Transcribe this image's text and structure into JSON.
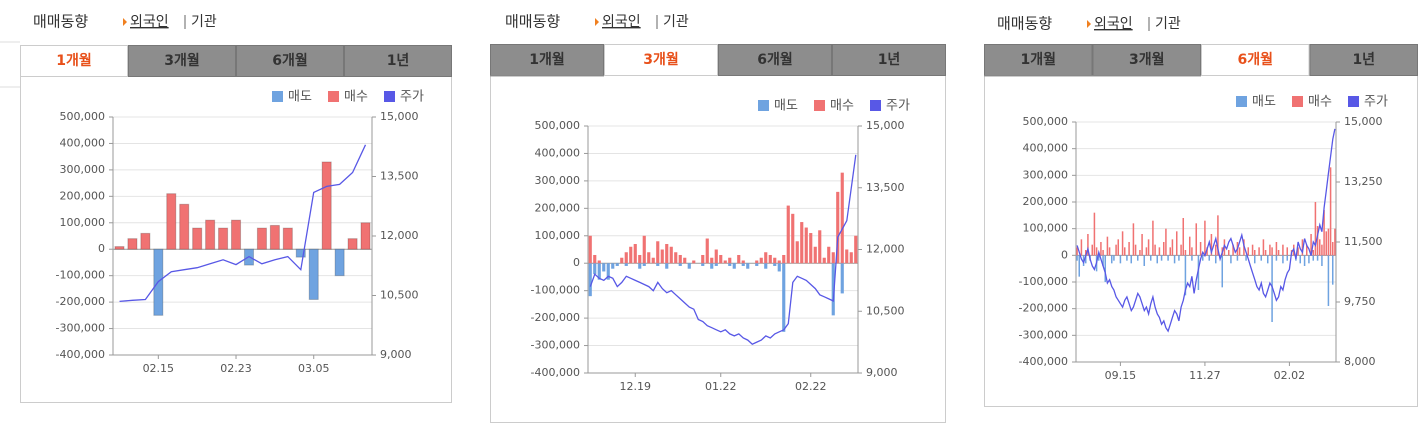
{
  "panels": [
    {
      "title": "매매동향",
      "links": [
        "외국인",
        "기관"
      ],
      "tabs": [
        "1개월",
        "3개월",
        "6개월",
        "1년"
      ],
      "active_tab": 0
    },
    {
      "title": "매매동향",
      "links": [
        "외국인",
        "기관"
      ],
      "tabs": [
        "1개월",
        "3개월",
        "6개월",
        "1년"
      ],
      "active_tab": 1
    },
    {
      "title": "매매동향",
      "links": [
        "외국인",
        "기관"
      ],
      "tabs": [
        "1개월",
        "3개월",
        "6개월",
        "1년"
      ],
      "active_tab": 2
    }
  ],
  "chart_data": [
    {
      "type": "bar",
      "grid": true,
      "categories": [
        null,
        null,
        null,
        "02.15",
        null,
        null,
        null,
        null,
        null,
        "02.23",
        null,
        null,
        null,
        null,
        null,
        "03.05",
        null,
        null,
        null,
        null
      ],
      "ylim": [
        -400000,
        500000
      ],
      "yticks": [
        {
          "value": 500000,
          "label": "500,000"
        },
        {
          "value": 400000,
          "label": "400,000"
        },
        {
          "value": 300000,
          "label": "300,000"
        },
        {
          "value": 200000,
          "label": "200,000"
        },
        {
          "value": 100000,
          "label": "100,000"
        },
        0,
        {
          "value": -100000,
          "label": "-100,000"
        },
        {
          "value": -200000,
          "label": "-200,000"
        },
        {
          "value": -300000,
          "label": "-300,000"
        },
        {
          "value": -400000,
          "label": "-400,000"
        }
      ],
      "y2lim": [
        9000,
        15000
      ],
      "y2ticks": [
        {
          "value": 15000,
          "label": "15,000"
        },
        {
          "value": 13500,
          "label": "13,500"
        },
        {
          "value": 12000,
          "label": "12,000"
        },
        {
          "value": 10500,
          "label": "10,500"
        },
        {
          "value": 9000,
          "label": "9,000"
        }
      ],
      "series": [
        {
          "name": "매도",
          "color": "#6fa3e0",
          "values": [
            null,
            null,
            null,
            -250000,
            null,
            null,
            null,
            null,
            null,
            null,
            -60000,
            null,
            null,
            null,
            -30000,
            -190000,
            null,
            -100000,
            null,
            null
          ]
        },
        {
          "name": "매수",
          "color": "#f07272",
          "values": [
            10000,
            40000,
            60000,
            null,
            210000,
            170000,
            80000,
            110000,
            80000,
            110000,
            null,
            80000,
            90000,
            80000,
            null,
            null,
            330000,
            null,
            40000,
            100000
          ]
        },
        {
          "name": "주가",
          "color": "#5858e6",
          "axis": "y2",
          "values": [
            10350,
            10380,
            10400,
            10850,
            11100,
            11150,
            11200,
            11300,
            11400,
            11280,
            11480,
            11300,
            11400,
            11480,
            11150,
            13100,
            13250,
            13300,
            13600,
            14300
          ]
        }
      ]
    },
    {
      "type": "bar",
      "grid": true,
      "categories": [
        null,
        null,
        null,
        null,
        null,
        null,
        null,
        null,
        null,
        null,
        "12.19",
        null,
        null,
        null,
        null,
        null,
        null,
        null,
        null,
        null,
        null,
        null,
        null,
        null,
        null,
        null,
        null,
        null,
        null,
        "01.22",
        null,
        null,
        null,
        null,
        null,
        null,
        null,
        null,
        null,
        null,
        null,
        null,
        null,
        null,
        null,
        null,
        null,
        null,
        null,
        "02.22",
        null,
        null,
        null,
        null,
        null,
        null,
        null,
        null,
        null,
        null
      ],
      "ylim": [
        -400000,
        500000
      ],
      "yticks": [
        {
          "value": 500000,
          "label": "500,000"
        },
        {
          "value": 400000,
          "label": "400,000"
        },
        {
          "value": 300000,
          "label": "300,000"
        },
        {
          "value": 200000,
          "label": "200,000"
        },
        {
          "value": 100000,
          "label": "100,000"
        },
        0,
        {
          "value": -100000,
          "label": "-100,000"
        },
        {
          "value": -200000,
          "label": "-200,000"
        },
        {
          "value": -300000,
          "label": "-300,000"
        },
        {
          "value": -400000,
          "label": "-400,000"
        }
      ],
      "y2lim": [
        9000,
        15000
      ],
      "y2ticks": [
        {
          "value": 15000,
          "label": "15,000"
        },
        {
          "value": 13500,
          "label": "13,500"
        },
        {
          "value": 12000,
          "label": "12,000"
        },
        {
          "value": 10500,
          "label": "10,500"
        },
        {
          "value": 9000,
          "label": "9,000"
        }
      ],
      "series": [
        {
          "name": "매도",
          "color": "#6fa3e0",
          "values": [
            -120000,
            -40000,
            -60000,
            -30000,
            -60000,
            -20000,
            -10000,
            null,
            -10000,
            null,
            null,
            -20000,
            -10000,
            null,
            null,
            -10000,
            null,
            -20000,
            null,
            null,
            -10000,
            null,
            -20000,
            null,
            null,
            -10000,
            null,
            -20000,
            -10000,
            null,
            null,
            -10000,
            -20000,
            null,
            -10000,
            -20000,
            null,
            -10000,
            null,
            -20000,
            null,
            -10000,
            -30000,
            -250000,
            null,
            null,
            null,
            null,
            null,
            null,
            null,
            null,
            null,
            null,
            -190000,
            null,
            -110000,
            null,
            null,
            null
          ]
        },
        {
          "name": "매수",
          "color": "#f07272",
          "values": [
            100000,
            30000,
            10000,
            null,
            null,
            null,
            null,
            20000,
            40000,
            60000,
            70000,
            30000,
            100000,
            40000,
            20000,
            80000,
            50000,
            70000,
            60000,
            40000,
            30000,
            20000,
            null,
            10000,
            null,
            30000,
            90000,
            20000,
            50000,
            30000,
            10000,
            20000,
            null,
            30000,
            10000,
            null,
            null,
            10000,
            20000,
            40000,
            30000,
            20000,
            10000,
            30000,
            210000,
            180000,
            80000,
            150000,
            130000,
            110000,
            60000,
            120000,
            20000,
            60000,
            40000,
            260000,
            330000,
            50000,
            40000,
            100000
          ]
        },
        {
          "name": "주가",
          "color": "#5858e6",
          "axis": "y2",
          "values": [
            11100,
            11400,
            11300,
            11250,
            11350,
            11300,
            11100,
            11200,
            11350,
            11300,
            11250,
            11200,
            11150,
            11100,
            11000,
            11200,
            11050,
            10950,
            11000,
            10900,
            10800,
            10700,
            10600,
            10550,
            10300,
            10250,
            10150,
            10100,
            10050,
            10000,
            10050,
            9950,
            9900,
            9950,
            9850,
            9800,
            9700,
            9750,
            9800,
            9900,
            9850,
            9950,
            10000,
            10050,
            10200,
            11200,
            11350,
            11300,
            11250,
            11150,
            11050,
            10900,
            10850,
            10800,
            10750,
            12300,
            12500,
            12700,
            13500,
            14300
          ]
        }
      ]
    },
    {
      "type": "bar",
      "grid": true,
      "categories": [
        null,
        null,
        null,
        null,
        null,
        null,
        null,
        null,
        null,
        null,
        null,
        null,
        null,
        null,
        null,
        null,
        null,
        null,
        null,
        null,
        "09.15",
        null,
        null,
        null,
        null,
        null,
        null,
        null,
        null,
        null,
        null,
        null,
        null,
        null,
        null,
        null,
        null,
        null,
        null,
        null,
        null,
        null,
        null,
        null,
        null,
        null,
        null,
        null,
        null,
        null,
        null,
        null,
        null,
        null,
        null,
        null,
        null,
        null,
        null,
        "11.27",
        null,
        null,
        null,
        null,
        null,
        null,
        null,
        null,
        null,
        null,
        null,
        null,
        null,
        null,
        null,
        null,
        null,
        null,
        null,
        null,
        null,
        null,
        null,
        null,
        null,
        null,
        null,
        null,
        null,
        null,
        null,
        null,
        null,
        null,
        null,
        null,
        null,
        null,
        "02.02",
        null,
        null,
        null,
        null,
        null,
        null,
        null,
        null,
        null,
        null,
        null,
        null,
        null,
        null,
        null,
        null,
        null,
        null,
        null,
        null,
        null
      ],
      "ylim": [
        -400000,
        500000
      ],
      "yticks": [
        {
          "value": 500000,
          "label": "500,000"
        },
        {
          "value": 400000,
          "label": "400,000"
        },
        {
          "value": 300000,
          "label": "300,000"
        },
        {
          "value": 200000,
          "label": "200,000"
        },
        {
          "value": 100000,
          "label": "100,000"
        },
        0,
        {
          "value": -100000,
          "label": "-100,000"
        },
        {
          "value": -200000,
          "label": "-200,000"
        },
        {
          "value": -300000,
          "label": "-300,000"
        },
        {
          "value": -400000,
          "label": "-400,000"
        }
      ],
      "y2lim": [
        8000,
        15000
      ],
      "y2ticks": [
        {
          "value": 15000,
          "label": "15,000"
        },
        {
          "value": 13250,
          "label": "13,250"
        },
        {
          "value": 11500,
          "label": "11,500"
        },
        {
          "value": 9750,
          "label": "9,750"
        },
        {
          "value": 8000,
          "label": "8,000"
        }
      ],
      "series": [
        {
          "name": "매도",
          "color": "#6fa3e0",
          "values": [
            -20000,
            -80000,
            null,
            -40000,
            -30000,
            null,
            -20000,
            null,
            null,
            -60000,
            -20000,
            null,
            -40000,
            -100000,
            null,
            null,
            -30000,
            -20000,
            null,
            null,
            -30000,
            null,
            null,
            -20000,
            null,
            -30000,
            null,
            null,
            -20000,
            null,
            null,
            -40000,
            null,
            null,
            -20000,
            null,
            null,
            -30000,
            null,
            -20000,
            null,
            null,
            -20000,
            null,
            null,
            -30000,
            null,
            -20000,
            null,
            null,
            -150000,
            null,
            null,
            -20000,
            null,
            null,
            -130000,
            null,
            -20000,
            null,
            null,
            -20000,
            null,
            null,
            -30000,
            null,
            null,
            -120000,
            null,
            null,
            null,
            -30000,
            null,
            null,
            -20000,
            null,
            null,
            null,
            -20000,
            null,
            null,
            null,
            -30000,
            null,
            null,
            -20000,
            null,
            null,
            -30000,
            null,
            -250000,
            null,
            -20000,
            null,
            null,
            -30000,
            null,
            -20000,
            null,
            null,
            null,
            -20000,
            null,
            -30000,
            null,
            -40000,
            null,
            -30000,
            null,
            -20000,
            null,
            -20000,
            null,
            -40000,
            null,
            null,
            -190000,
            null,
            -110000,
            null
          ]
        },
        {
          "name": "매수",
          "color": "#f07272",
          "values": [
            30000,
            null,
            60000,
            null,
            20000,
            80000,
            null,
            40000,
            160000,
            30000,
            null,
            50000,
            20000,
            null,
            70000,
            30000,
            null,
            null,
            40000,
            60000,
            null,
            90000,
            30000,
            null,
            50000,
            null,
            120000,
            40000,
            null,
            20000,
            80000,
            null,
            30000,
            60000,
            null,
            130000,
            40000,
            null,
            30000,
            null,
            50000,
            100000,
            null,
            30000,
            60000,
            null,
            90000,
            null,
            40000,
            140000,
            20000,
            null,
            70000,
            30000,
            null,
            120000,
            null,
            50000,
            null,
            130000,
            30000,
            null,
            80000,
            null,
            40000,
            150000,
            null,
            30000,
            60000,
            null,
            20000,
            null,
            40000,
            null,
            50000,
            30000,
            null,
            60000,
            null,
            30000,
            null,
            40000,
            20000,
            null,
            30000,
            null,
            60000,
            20000,
            null,
            40000,
            30000,
            null,
            50000,
            20000,
            null,
            40000,
            null,
            30000,
            null,
            20000,
            40000,
            null,
            30000,
            null,
            60000,
            null,
            40000,
            null,
            80000,
            20000,
            200000,
            110000,
            60000,
            40000,
            170000,
            90000,
            100000,
            330000,
            50000,
            100000
          ]
        },
        {
          "name": "주가",
          "color": "#5858e6",
          "axis": "y2",
          "values": [
            11400,
            11200,
            11000,
            10900,
            11100,
            11300,
            11000,
            10800,
            10700,
            10900,
            11200,
            11000,
            10800,
            10600,
            10300,
            10400,
            10200,
            10100,
            9900,
            9800,
            9700,
            9600,
            9800,
            9900,
            9700,
            9500,
            9600,
            9800,
            10000,
            9900,
            9700,
            9500,
            9600,
            9400,
            9700,
            9900,
            9600,
            9400,
            9300,
            9100,
            9200,
            9000,
            8900,
            9100,
            9300,
            9500,
            9400,
            9200,
            9600,
            9800,
            10100,
            10300,
            10200,
            10500,
            10000,
            10400,
            10700,
            11000,
            11200,
            11100,
            11300,
            11500,
            11200,
            11400,
            11600,
            11300,
            11000,
            11200,
            11400,
            11300,
            11500,
            11600,
            11400,
            11200,
            11300,
            11500,
            11700,
            11400,
            11200,
            11000,
            10800,
            10600,
            10400,
            10200,
            10100,
            10300,
            10000,
            9900,
            10100,
            10300,
            10200,
            10000,
            9800,
            9900,
            10200,
            10100,
            10400,
            10600,
            10700,
            11200,
            11300,
            11000,
            11500,
            11300,
            11200,
            11600,
            11400,
            11300,
            11100,
            11500,
            11400,
            11700,
            12000,
            11800,
            12500,
            13000,
            13500,
            14000,
            14500,
            14800
          ]
        }
      ]
    }
  ]
}
